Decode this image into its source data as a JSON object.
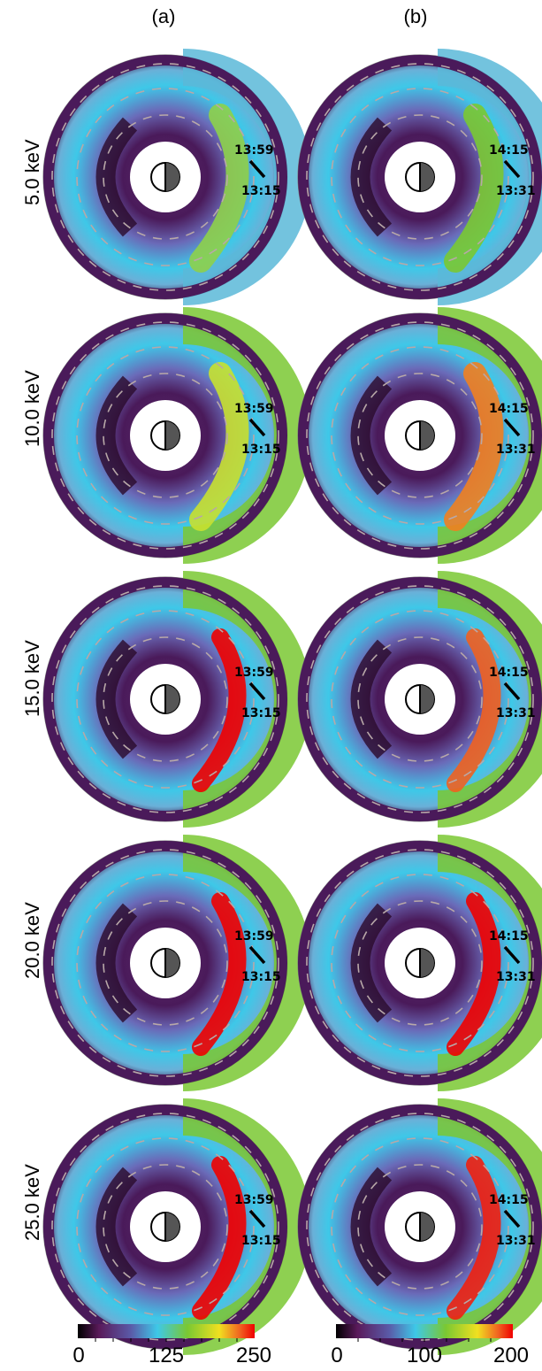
{
  "columns": [
    {
      "label": "(a)",
      "upper_time": "13:59",
      "lower_time": "13:15"
    },
    {
      "label": "(b)",
      "upper_time": "14:15",
      "lower_time": "13:31"
    }
  ],
  "rows": [
    {
      "energy": "5.0 keV"
    },
    {
      "energy": "10.0 keV"
    },
    {
      "energy": "15.0 keV"
    },
    {
      "energy": "20.0 keV"
    },
    {
      "energy": "25.0 keV"
    }
  ],
  "colorbars": [
    {
      "ticks": [
        "0",
        "125",
        "250"
      ],
      "min": 0,
      "max": 250
    },
    {
      "ticks": [
        "0",
        "100",
        "200"
      ],
      "min": 0,
      "max": 200
    }
  ],
  "colors": {
    "scale": [
      "#1a0016",
      "#5a1a5a",
      "#6a5aa8",
      "#3ec8e8",
      "#7ac832",
      "#f0e020",
      "#f08020",
      "#f00000"
    ],
    "contour": "#b8a8a8",
    "sun_dark": "#555555"
  }
}
